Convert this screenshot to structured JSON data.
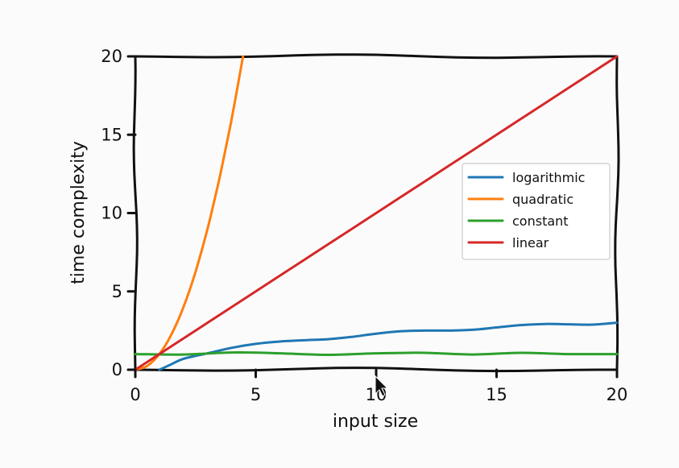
{
  "chart_data": {
    "type": "line",
    "style": "xkcd",
    "xlabel": "input size",
    "ylabel": "time complexity",
    "xlim": [
      0,
      20
    ],
    "ylim": [
      0,
      20
    ],
    "xticks": [
      0,
      5,
      10,
      15,
      20
    ],
    "yticks": [
      0,
      5,
      10,
      15,
      20
    ],
    "grid": false,
    "legend": {
      "placement": "right",
      "entries": [
        "logarithmic",
        "quadratic",
        "constant",
        "linear"
      ]
    },
    "series": [
      {
        "name": "logarithmic",
        "color": "#1f77b4",
        "x": [
          1,
          1.5,
          2,
          3,
          4,
          5,
          6,
          7,
          8,
          9,
          10,
          11,
          12,
          13,
          14,
          15,
          16,
          17,
          18,
          19,
          20
        ],
        "y": [
          0.0,
          0.35,
          0.7,
          1.05,
          1.4,
          1.65,
          1.8,
          1.88,
          1.95,
          2.1,
          2.3,
          2.45,
          2.5,
          2.5,
          2.55,
          2.7,
          2.85,
          2.92,
          2.9,
          2.88,
          3.0
        ]
      },
      {
        "name": "quadratic",
        "color": "#ff7f0e",
        "x": [
          0,
          0.5,
          1,
          1.5,
          2,
          2.5,
          3,
          3.25,
          3.5,
          3.75,
          4,
          4.25,
          4.47
        ],
        "y": [
          0,
          0.25,
          1,
          2.25,
          4,
          6.25,
          9,
          10.6,
          12.25,
          14.1,
          16,
          18.1,
          20
        ]
      },
      {
        "name": "constant",
        "color": "#2ca02c",
        "x": [
          0,
          2,
          4,
          6,
          8,
          10,
          12,
          14,
          16,
          18,
          20
        ],
        "y": [
          1,
          0.97,
          1.1,
          1.05,
          0.95,
          1.05,
          1.08,
          0.97,
          1.08,
          1.0,
          1.0
        ]
      },
      {
        "name": "linear",
        "color": "#d62728",
        "x": [
          0,
          2,
          4,
          6,
          8,
          10,
          12,
          14,
          16,
          18,
          20
        ],
        "y": [
          0,
          2,
          4,
          6,
          8,
          10,
          12,
          14,
          16,
          18,
          20
        ]
      }
    ]
  }
}
